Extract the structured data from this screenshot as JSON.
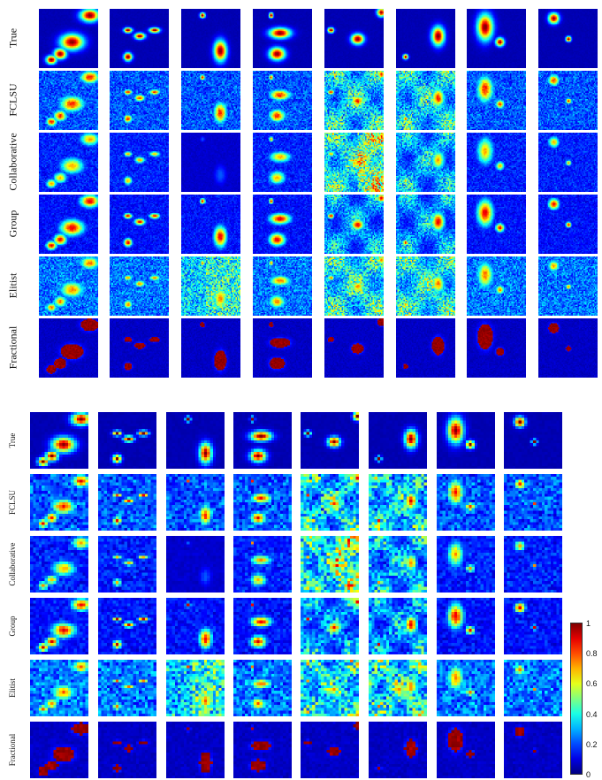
{
  "panels": [
    {
      "id": "top",
      "rows": [
        "True",
        "FCLSU",
        "Collaborative",
        "Group",
        "Elitist",
        "Fractional"
      ]
    },
    {
      "id": "bottom",
      "rows": [
        "True",
        "FCLSU",
        "Collaborative",
        "Group",
        "Elitist",
        "Fractional"
      ]
    }
  ],
  "columns_per_panel": 8,
  "colormap": "jet",
  "colorbar": {
    "ticks": [
      "1",
      "0.8",
      "0.6",
      "0.4",
      "0.2",
      "0"
    ]
  },
  "colors": {
    "background_low": "#00008f",
    "high": "#800000"
  }
}
